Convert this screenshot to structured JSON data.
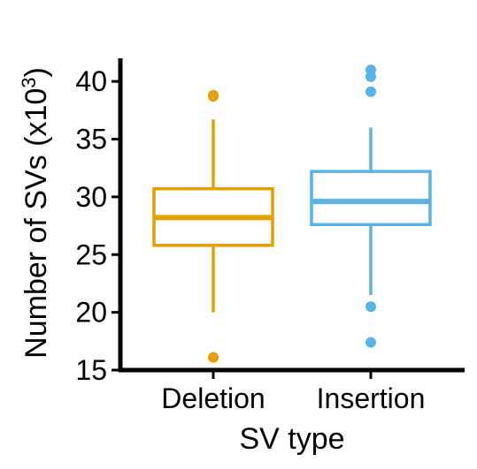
{
  "chart_data": {
    "type": "box",
    "title": "",
    "xlabel": "SV type",
    "ylabel": {
      "main": "Number of SVs (x10",
      "superscript": "3",
      "suffix": ")"
    },
    "ylim": [
      15,
      42
    ],
    "yticks": [
      15,
      20,
      25,
      30,
      35,
      40
    ],
    "grid": false,
    "legend": "none",
    "categories": [
      "Deletion",
      "Insertion"
    ],
    "series": [
      {
        "category": "Deletion",
        "color": "#E69F00",
        "q1": 25.8,
        "median": 28.2,
        "q3": 30.7,
        "whisker_low": 20.0,
        "whisker_high": 36.7,
        "outliers": [
          38.7,
          38.8,
          16.1
        ]
      },
      {
        "category": "Insertion",
        "color": "#56B4E9",
        "q1": 27.6,
        "median": 29.6,
        "q3": 32.2,
        "whisker_low": 21.5,
        "whisker_high": 36.0,
        "outliers": [
          41.0,
          40.4,
          39.1,
          20.5,
          17.4
        ]
      }
    ]
  }
}
